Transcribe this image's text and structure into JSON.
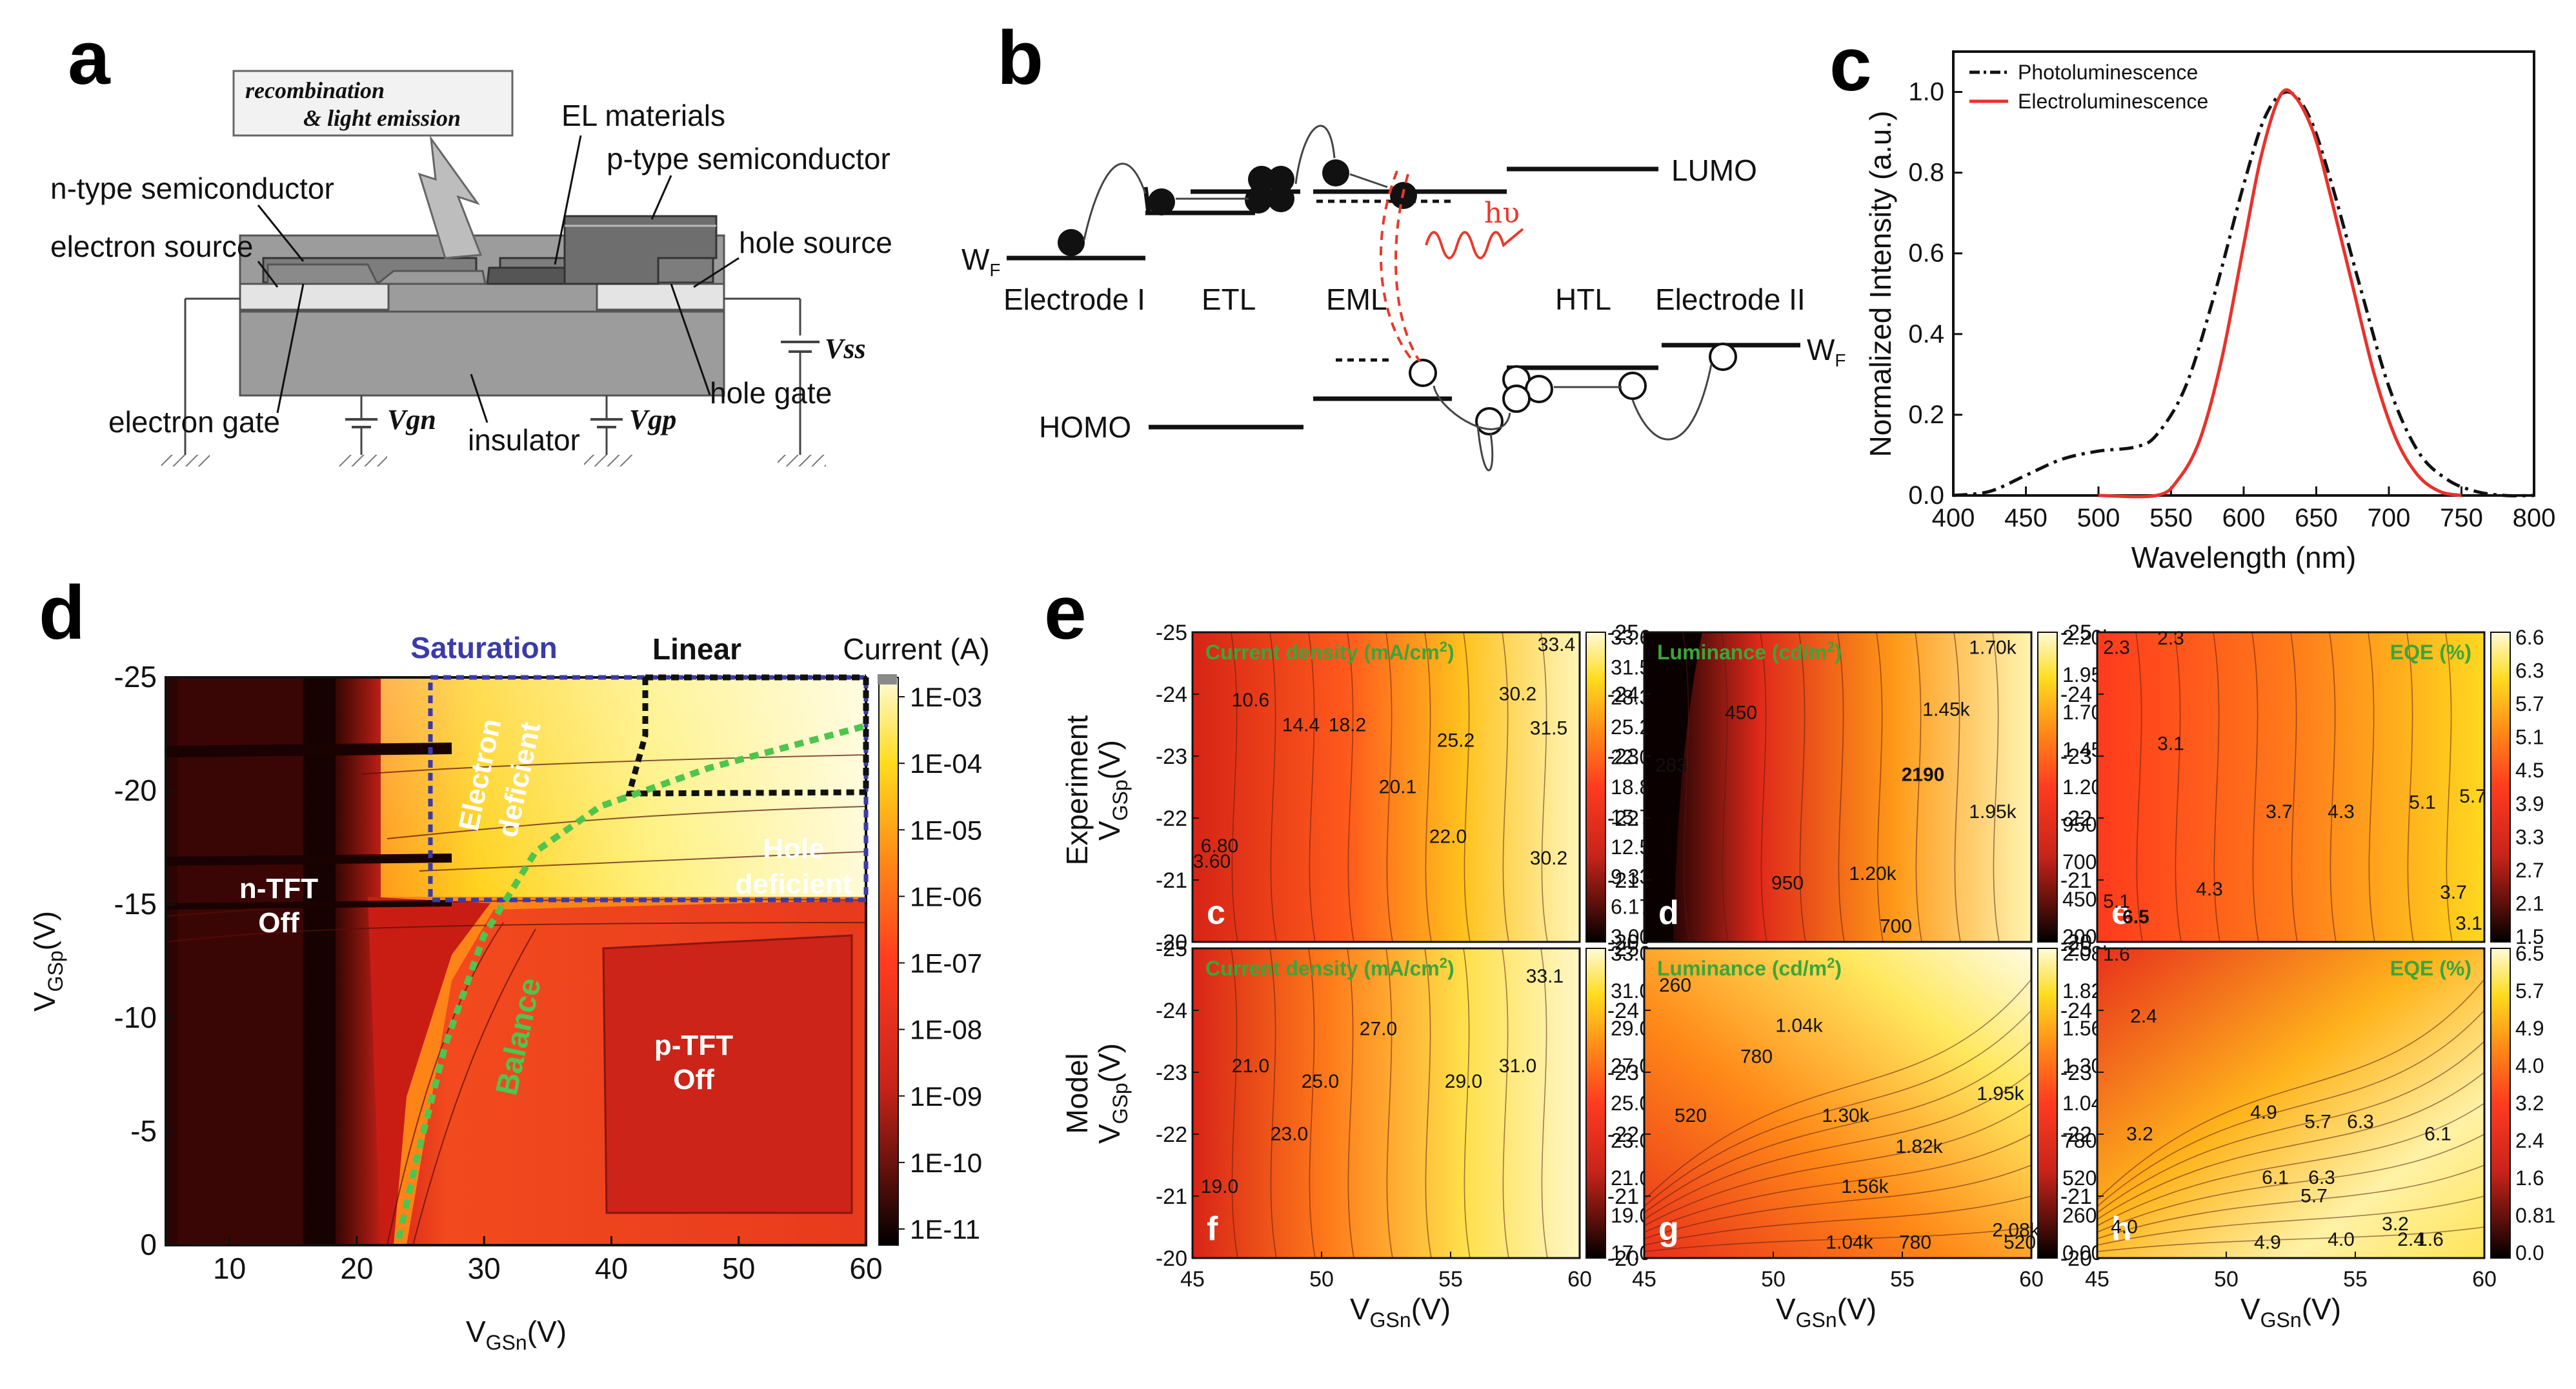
{
  "panels": {
    "a": {
      "label": "a",
      "recombination": "recombination",
      "light_emission": "& light emission",
      "el_materials": "EL materials",
      "n_type": "n-type semiconductor",
      "p_type": "p-type semiconductor",
      "electron_source": "electron source",
      "hole_source": "hole source",
      "vss": "Vss",
      "hole_gate": "hole gate",
      "electron_gate": "electron gate",
      "vgn": "Vgn",
      "insulator": "insulator",
      "vgp": "Vgp"
    },
    "b": {
      "label": "b",
      "lumo": "LUMO",
      "homo": "HOMO",
      "wf_left": "W",
      "wf_right": "W",
      "wf_sub": "F",
      "hv": "hυ",
      "layers": [
        "Electrode I",
        "ETL",
        "EML",
        "HTL",
        "Electrode II"
      ]
    },
    "c": {
      "label": "c"
    },
    "d": {
      "label": "d",
      "saturation": "Saturation",
      "linear": "Linear",
      "current_title": "Current (A)",
      "colorbar_ticks": [
        "1E-03",
        "1E-04",
        "1E-05",
        "1E-06",
        "1E-07",
        "1E-08",
        "1E-09",
        "1E-10",
        "1E-11"
      ],
      "region_labels": {
        "n_tft": "n-TFT",
        "n_off": "Off",
        "p_tft": "p-TFT",
        "p_off": "Off",
        "electron": "Electron",
        "deficient": "deficient",
        "hole": "Hole",
        "hole_deficient": "deficient",
        "balance": "Balance"
      },
      "ylabel_main": "V",
      "ylabel_sub": "GSp",
      "ylabel_unit": "(V)",
      "xlabel_main": "V",
      "xlabel_sub": "GSn",
      "xlabel_unit": "(V)"
    },
    "e": {
      "label": "e",
      "row_labels": [
        "Experiment",
        "Model"
      ],
      "ylabel_main": "V",
      "ylabel_sub": "GSp",
      "ylabel_unit": "(V)",
      "xlabel_main": "V",
      "xlabel_sub": "GSn",
      "xlabel_unit": "(V)",
      "x_ticks": [
        "45",
        "50",
        "55",
        "60"
      ],
      "y_ticks": [
        "-25",
        "-24",
        "-23",
        "-22",
        "-21",
        "-20"
      ],
      "subplots": [
        {
          "letter": "c",
          "title": "Current density (mA/cm",
          "title_sup": "2",
          "title_end": ")",
          "colorbar": [
            "33.6",
            "31.5",
            "28.3",
            "25.2",
            "22.0",
            "18.8",
            "15.7",
            "12.5",
            "9.33",
            "6.17",
            "3.00"
          ],
          "contour_labels": [
            "33.4",
            "30.2",
            "31.5",
            "10.6",
            "14.4",
            "18.2",
            "25.2",
            "20.1",
            "6.80",
            "22.0",
            "30.2",
            "3.60"
          ]
        },
        {
          "letter": "d",
          "title": "Luminance (cd/m",
          "title_sup": "2",
          "title_end": ")",
          "colorbar": [
            "2.20k",
            "1.95k",
            "1.70k",
            "1.45k",
            "1.20k",
            "950",
            "700",
            "450",
            "200"
          ],
          "contour_labels": [
            "1.70k",
            "450",
            "1.45k",
            "283",
            "2190",
            "1.95k",
            "950",
            "1.20k",
            "700"
          ]
        },
        {
          "letter": "e",
          "title": "EQE (%)",
          "title_sup": "",
          "title_end": "",
          "colorbar": [
            "6.6",
            "6.3",
            "5.7",
            "5.1",
            "4.5",
            "3.9",
            "3.3",
            "2.7",
            "2.1",
            "1.5"
          ],
          "contour_labels": [
            "2.3",
            "2.3",
            "3.1",
            "3.7",
            "4.3",
            "5.1",
            "5.7",
            "4.3",
            "3.7",
            "5.1",
            "6.5",
            "3.1"
          ]
        },
        {
          "letter": "f",
          "title": "Current density (mA/cm",
          "title_sup": "2",
          "title_end": ")",
          "colorbar": [
            "33.0",
            "31.0",
            "29.0",
            "27.0",
            "25.0",
            "23.0",
            "21.0",
            "19.0",
            "17.0"
          ],
          "contour_labels": [
            "33.1",
            "27.0",
            "21.0",
            "25.0",
            "29.0",
            "31.0",
            "23.0",
            "19.0"
          ]
        },
        {
          "letter": "g",
          "title": "Luminance (cd/m",
          "title_sup": "2",
          "title_end": ")",
          "colorbar": [
            "2.08k",
            "1.82k",
            "1.56k",
            "1.30k",
            "1.04k",
            "780",
            "520",
            "260",
            "0.00"
          ],
          "contour_labels": [
            "260",
            "1.04k",
            "780",
            "520",
            "1.30k",
            "1.82k",
            "1.95k",
            "1.56k",
            "1.04k",
            "780",
            "2.08k",
            "520"
          ]
        },
        {
          "letter": "h",
          "title": "EQE (%)",
          "title_sup": "",
          "title_end": "",
          "colorbar": [
            "6.5",
            "5.7",
            "4.9",
            "4.0",
            "3.2",
            "2.4",
            "1.6",
            "0.81",
            "0.0"
          ],
          "contour_labels": [
            "1.6",
            "2.4",
            "3.2",
            "4.9",
            "5.7",
            "6.3",
            "6.1",
            "6.1",
            "6.3",
            "5.7",
            "4.0",
            "4.9",
            "4.0",
            "3.2",
            "2.4",
            "1.6"
          ]
        }
      ]
    }
  },
  "chart_data": [
    {
      "type": "line",
      "panel": "c",
      "title": "",
      "xlabel": "Wavelength (nm)",
      "ylabel": "Normalized Intensity (a.u.)",
      "xlim": [
        400,
        800
      ],
      "ylim": [
        0.0,
        1.1
      ],
      "x_ticks": [
        "400",
        "450",
        "500",
        "550",
        "600",
        "650",
        "700",
        "750",
        "800"
      ],
      "y_ticks": [
        "0.0",
        "0.2",
        "0.4",
        "0.6",
        "0.8",
        "1.0"
      ],
      "legend": "top-left",
      "series": [
        {
          "name": "Photoluminescence",
          "color": "#111111",
          "dash": "dashdot",
          "x": [
            400,
            425,
            450,
            475,
            500,
            525,
            540,
            560,
            580,
            600,
            615,
            630,
            645,
            660,
            680,
            700,
            720,
            740,
            760,
            780,
            800
          ],
          "y": [
            0.0,
            0.01,
            0.05,
            0.09,
            0.11,
            0.12,
            0.15,
            0.27,
            0.5,
            0.77,
            0.94,
            1.0,
            0.94,
            0.78,
            0.52,
            0.27,
            0.11,
            0.04,
            0.01,
            0.0,
            0.0
          ]
        },
        {
          "name": "Electroluminescence",
          "color": "#e8322b",
          "dash": "solid",
          "x": [
            500,
            540,
            555,
            570,
            585,
            600,
            612,
            625,
            635,
            648,
            660,
            675,
            690,
            705,
            720,
            735,
            750
          ],
          "y": [
            0.0,
            0.0,
            0.04,
            0.14,
            0.34,
            0.62,
            0.84,
            0.99,
            0.99,
            0.9,
            0.74,
            0.52,
            0.3,
            0.14,
            0.05,
            0.01,
            0.0
          ]
        }
      ]
    },
    {
      "type": "heatmap",
      "panel": "d",
      "title": "Current (A)",
      "xlabel": "VGSn(V)",
      "ylabel": "VGSp (V)",
      "xlim": [
        5,
        60
      ],
      "ylim": [
        0,
        -25
      ],
      "x_ticks": [
        "10",
        "20",
        "30",
        "40",
        "50",
        "60"
      ],
      "y_ticks": [
        "-25",
        "-20",
        "-15",
        "-10",
        "-5",
        "0"
      ],
      "colorbar_range": [
        "1E-11",
        "1E-03"
      ]
    }
  ]
}
